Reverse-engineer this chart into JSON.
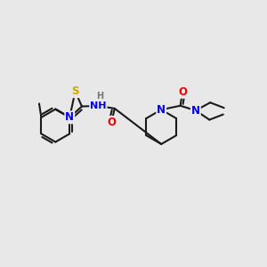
{
  "bg_color": "#e8e8e8",
  "bond_color": "#1a1a1a",
  "bond_width": 1.5,
  "atom_colors": {
    "N": "#0000ee",
    "O": "#ee0000",
    "S": "#ccaa00",
    "H": "#777777",
    "C": "#1a1a1a"
  },
  "fs": 8.5
}
